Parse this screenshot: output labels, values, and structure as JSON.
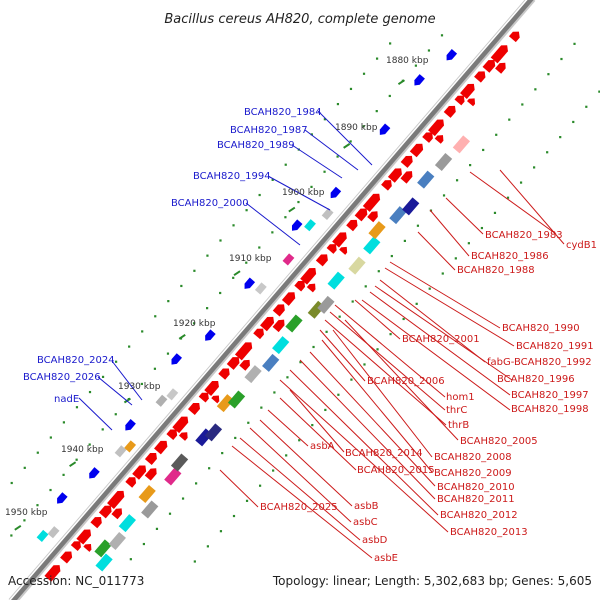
{
  "title": "Bacillus cereus AH820, complete genome",
  "footer": {
    "accession": "Accession: NC_011773",
    "summary": "Topology: linear; Length: 5,302,683 bp; Genes: 5,605"
  },
  "scale_labels": [
    "1880 kbp",
    "1890 kbp",
    "1900 kbp",
    "1910 kbp",
    "1920 kbp",
    "1930 kbp",
    "1940 kbp",
    "1950 kbp"
  ],
  "left_labels": [
    "BCAH820_1984",
    "BCAH820_1987",
    "BCAH820_1989",
    "BCAH820_1994",
    "BCAH820_2000",
    "BCAH820_2024",
    "BCAH820_2026",
    "nadE"
  ],
  "right_labels": [
    "BCAH820_1983",
    "cydB1",
    "BCAH820_1986",
    "BCAH820_1988",
    "BCAH820_1990",
    "BCAH820_2001",
    "BCAH820_1991",
    "fabG-BCAH820_1992",
    "BCAH820_2006",
    "BCAH820_1996",
    "hom1",
    "BCAH820_1997",
    "thrC",
    "BCAH820_1998",
    "thrB",
    "BCAH820_2005",
    "asbA",
    "BCAH820_2014",
    "BCAH820_2008",
    "BCAH820_2015",
    "BCAH820_2009",
    "BCAH820_2010",
    "BCAH820_2011",
    "BCAH820_2025",
    "asbB",
    "BCAH820_2012",
    "asbC",
    "BCAH820_2013",
    "asbD",
    "asbE"
  ],
  "colors": {
    "backbone": "#8a8a8a",
    "forward_gene": "#ee0000",
    "reverse_gene": "#0000ee",
    "ticks": "#2a8a2a",
    "left_label": "#1a1acc",
    "right_label": "#cc1a1a"
  }
}
